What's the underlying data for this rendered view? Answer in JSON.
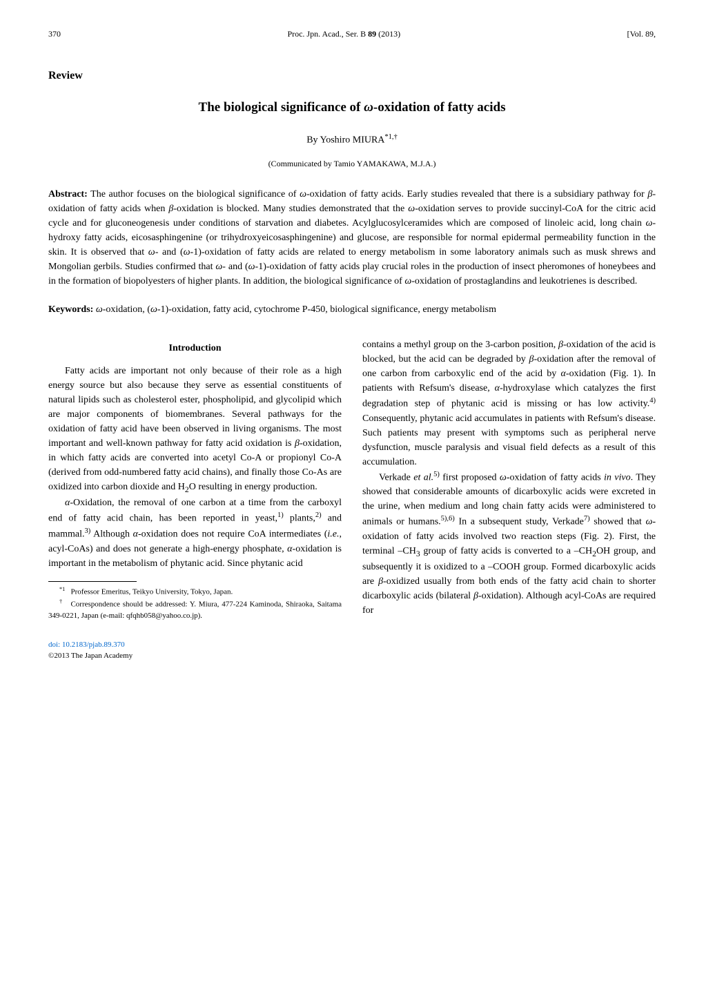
{
  "header": {
    "page_number": "370",
    "journal_info": "Proc. Jpn. Acad., Ser. B 89 (2013)",
    "volume_info": "[Vol. 89,"
  },
  "review_label": "Review",
  "title": "The biological significance of ω-oxidation of fatty acids",
  "author": "By Yoshiro MIURA*1,†",
  "communicated": "(Communicated by Tamio YAMAKAWA, M.J.A.)",
  "abstract_label": "Abstract:",
  "abstract_text": "The author focuses on the biological significance of ω-oxidation of fatty acids. Early studies revealed that there is a subsidiary pathway for β-oxidation of fatty acids when β-oxidation is blocked. Many studies demonstrated that the ω-oxidation serves to provide succinyl-CoA for the citric acid cycle and for gluconeogenesis under conditions of starvation and diabetes. Acylglucosylceramides which are composed of linoleic acid, long chain ω-hydroxy fatty acids, eicosasphingenine (or trihydroxyeicosasphingenine) and glucose, are responsible for normal epidermal permeability function in the skin. It is observed that ω- and (ω-1)-oxidation of fatty acids are related to energy metabolism in some laboratory animals such as musk shrews and Mongolian gerbils. Studies confirmed that ω- and (ω-1)-oxidation of fatty acids play crucial roles in the production of insect pheromones of honeybees and in the formation of biopolyesters of higher plants. In addition, the biological significance of ω-oxidation of prostaglandins and leukotrienes is described.",
  "keywords_label": "Keywords:",
  "keywords_text": "ω-oxidation, (ω-1)-oxidation, fatty acid, cytochrome P-450, biological significance, energy metabolism",
  "intro_heading": "Introduction",
  "left_column": {
    "p1": "Fatty acids are important not only because of their role as a high energy source but also because they serve as essential constituents of natural lipids such as cholesterol ester, phospholipid, and glycolipid which are major components of biomembranes. Several pathways for the oxidation of fatty acid have been observed in living organisms. The most important and well-known pathway for fatty acid oxidation is β-oxidation, in which fatty acids are converted into acetyl Co-A or propionyl Co-A (derived from odd-numbered fatty acid chains), and finally those Co-As are oxidized into carbon dioxide and H₂O resulting in energy production.",
    "p2": "α-Oxidation, the removal of one carbon at a time from the carboxyl end of fatty acid chain, has been reported in yeast,¹⁾ plants,²⁾ and mammal.³⁾ Although α-oxidation does not require CoA intermediates (i.e., acyl-CoAs) and does not generate a high-energy phosphate, α-oxidation is important in the metabolism of phytanic acid. Since phytanic acid"
  },
  "right_column": {
    "p1": "contains a methyl group on the 3-carbon position, β-oxidation of the acid is blocked, but the acid can be degraded by β-oxidation after the removal of one carbon from carboxylic end of the acid by α-oxidation (Fig. 1). In patients with Refsum's disease, α-hydroxylase which catalyzes the first degradation step of phytanic acid is missing or has low activity.⁴⁾ Consequently, phytanic acid accumulates in patients with Refsum's disease. Such patients may present with symptoms such as peripheral nerve dysfunction, muscle paralysis and visual field defects as a result of this accumulation.",
    "p2": "Verkade et al.⁵⁾ first proposed ω-oxidation of fatty acids in vivo. They showed that considerable amounts of dicarboxylic acids were excreted in the urine, when medium and long chain fatty acids were administered to animals or humans.⁵⁾,⁶⁾ In a subsequent study, Verkade⁷⁾ showed that ω-oxidation of fatty acids involved two reaction steps (Fig. 2). First, the terminal –CH₃ group of fatty acids is converted to a –CH₂OH group, and subsequently it is oxidized to a –COOH group. Formed dicarboxylic acids are β-oxidized usually from both ends of the fatty acid chain to shorter dicarboxylic acids (bilateral β-oxidation). Although acyl-CoAs are required for"
  },
  "footnotes": {
    "fn1": "*1   Professor Emeritus, Teikyo University, Tokyo, Japan.",
    "fn2": "†   Correspondence should be addressed: Y. Miura, 477-224 Kaminoda, Shiraoka, Saitama 349-0221, Japan (e-mail: qfqhb058@yahoo.co.jp)."
  },
  "doi": {
    "link": "doi: 10.2183/pjab.89.370",
    "copyright": "©2013 The Japan Academy"
  }
}
